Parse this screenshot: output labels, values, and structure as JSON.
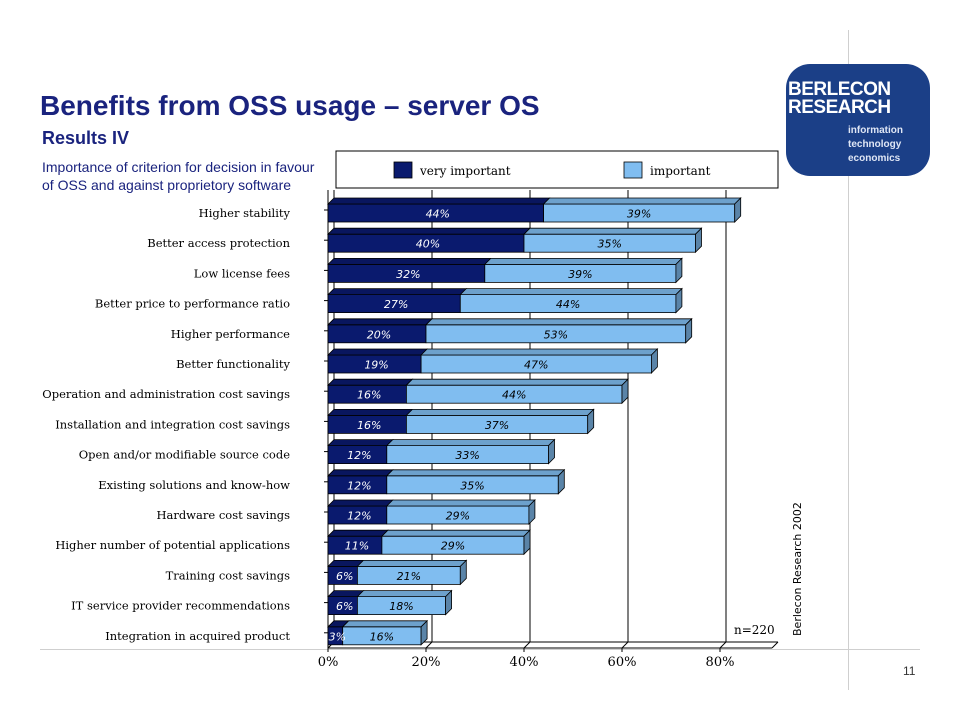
{
  "slide": {
    "title": "Benefits from OSS usage – server OS",
    "subtitle": "Results IV",
    "description": "Importance of criterion for decision in favour of OSS and against proprietory software",
    "page_number": "11"
  },
  "logo": {
    "line1": "BERLECON",
    "line2": "RESEARCH",
    "sub1": "information",
    "sub2": "technology",
    "sub3": "economics"
  },
  "colors": {
    "very_important": "#0a1a6e",
    "important": "#80bdf0",
    "logo_bg": "#1b3f87",
    "title": "#1a237e"
  },
  "chart_data": {
    "type": "bar",
    "orientation": "horizontal",
    "stacked": true,
    "categories": [
      "Higher stability",
      "Better access protection",
      "Low license fees",
      "Better price to performance ratio",
      "Higher performance",
      "Better functionality",
      "Operation and administration cost savings",
      "Installation and integration cost savings",
      "Open and/or modifiable source code",
      "Existing solutions and know-how",
      "Hardware cost savings",
      "Higher number of potential applications",
      "Training cost savings",
      "IT service provider recommendations",
      "Integration in acquired product"
    ],
    "series": [
      {
        "name": "very important",
        "values": [
          44,
          40,
          32,
          27,
          20,
          19,
          16,
          16,
          12,
          12,
          12,
          11,
          6,
          6,
          3
        ]
      },
      {
        "name": "important",
        "values": [
          39,
          35,
          39,
          44,
          53,
          47,
          44,
          37,
          33,
          35,
          29,
          29,
          21,
          18,
          16
        ]
      }
    ],
    "xlim": [
      0,
      90
    ],
    "xticks": [
      "0%",
      "20%",
      "40%",
      "60%",
      "80%"
    ],
    "xtick_values": [
      0,
      20,
      40,
      60,
      80
    ],
    "legend": "top",
    "annotation": "n=220",
    "source": "Berlecon Research 2002",
    "grid": true
  }
}
